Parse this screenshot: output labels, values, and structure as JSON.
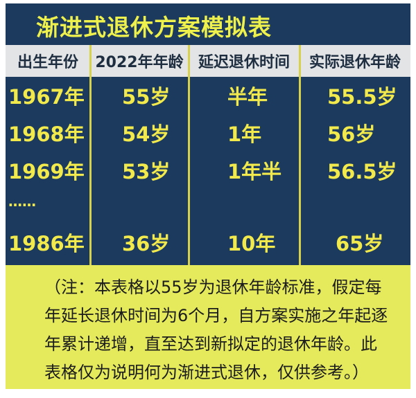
{
  "title": "渐进式退休方案模拟表",
  "table": {
    "headers": [
      "出生年份",
      "2022年年龄",
      "延迟退休时间",
      "实际退休年龄"
    ],
    "rows": [
      [
        "1967年",
        "55岁",
        "半年",
        "55.5岁"
      ],
      [
        "1968年",
        "54岁",
        "1年",
        "56岁"
      ],
      [
        "1969年",
        "53岁",
        "1年半",
        "56.5岁"
      ],
      [
        "……",
        "",
        "",
        ""
      ],
      [
        "1986年",
        "36岁",
        "10年",
        "65岁"
      ]
    ]
  },
  "note": "（注：本表格以55岁为退休年龄标准，假定每年延长退休时间为6个月，自方案实施之年起逐年累计递增，直至达到新拟定的退休年龄。此表格仅为说明何为渐进式退休，仅供参考。）",
  "colors": {
    "navy": "#1b3a5e",
    "yellow_text": "#f2ea4c",
    "note_bg": "#e4ea5c",
    "header_bg": "#e2e4e6"
  }
}
